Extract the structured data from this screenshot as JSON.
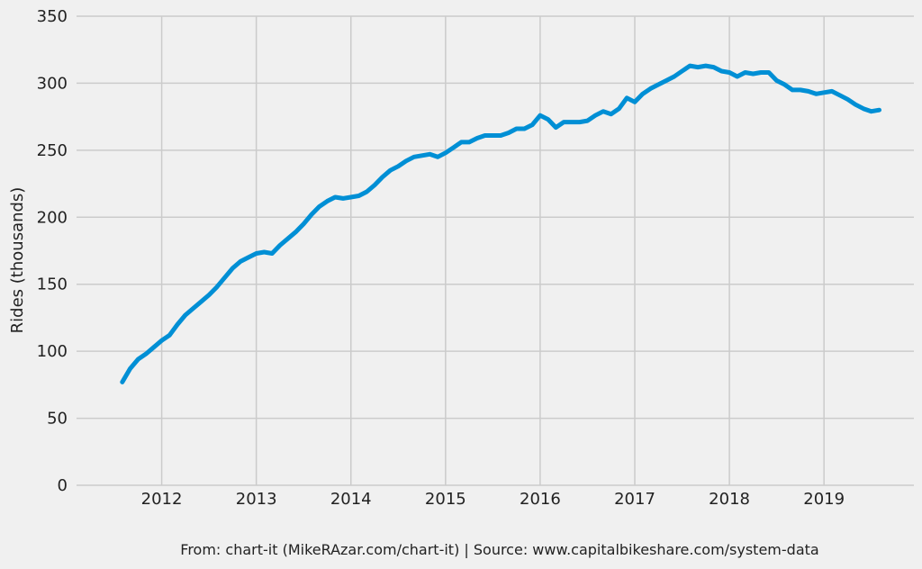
{
  "chart_data": {
    "type": "line",
    "title": "",
    "xlabel": "",
    "ylabel": "Rides (thousands)",
    "ylim": [
      0,
      350
    ],
    "xlim": [
      2011.1,
      2019.95
    ],
    "y_ticks": [
      0,
      50,
      100,
      150,
      200,
      250,
      300,
      350
    ],
    "x_ticks": [
      2012,
      2013,
      2014,
      2015,
      2016,
      2017,
      2018,
      2019
    ],
    "grid": true,
    "line_color": "#008fd5",
    "background_color": "#f0f0f0",
    "grid_color": "#cbcbcb",
    "series": [
      {
        "x": [
          "2011-08",
          "2011-09",
          "2011-10",
          "2011-11",
          "2011-12",
          "2012-01",
          "2012-02",
          "2012-03",
          "2012-04",
          "2012-05",
          "2012-06",
          "2012-07",
          "2012-08",
          "2012-09",
          "2012-10",
          "2012-11",
          "2012-12",
          "2013-01",
          "2013-02",
          "2013-03",
          "2013-04",
          "2013-05",
          "2013-06",
          "2013-07",
          "2013-08",
          "2013-09",
          "2013-10",
          "2013-11",
          "2013-12",
          "2014-01",
          "2014-02",
          "2014-03",
          "2014-04",
          "2014-05",
          "2014-06",
          "2014-07",
          "2014-08",
          "2014-09",
          "2014-10",
          "2014-11",
          "2014-12",
          "2015-01",
          "2015-02",
          "2015-03",
          "2015-04",
          "2015-05",
          "2015-06",
          "2015-07",
          "2015-08",
          "2015-09",
          "2015-10",
          "2015-11",
          "2015-12",
          "2016-01",
          "2016-02",
          "2016-03",
          "2016-04",
          "2016-05",
          "2016-06",
          "2016-07",
          "2016-08",
          "2016-09",
          "2016-10",
          "2016-11",
          "2016-12",
          "2017-01",
          "2017-02",
          "2017-03",
          "2017-04",
          "2017-05",
          "2017-06",
          "2017-07",
          "2017-08",
          "2017-09",
          "2017-10",
          "2017-11",
          "2017-12",
          "2018-01",
          "2018-02",
          "2018-03",
          "2018-04",
          "2018-05",
          "2018-06",
          "2018-07",
          "2018-08",
          "2018-09",
          "2018-10",
          "2018-11",
          "2018-12",
          "2019-01",
          "2019-02",
          "2019-03",
          "2019-04",
          "2019-05",
          "2019-06",
          "2019-07",
          "2019-08"
        ],
        "values": [
          77,
          87,
          94,
          98,
          103,
          108,
          112,
          120,
          127,
          132,
          137,
          142,
          148,
          155,
          162,
          167,
          170,
          173,
          174,
          173,
          179,
          184,
          189,
          195,
          202,
          208,
          212,
          215,
          214,
          215,
          216,
          219,
          224,
          230,
          235,
          238,
          242,
          245,
          246,
          247,
          245,
          248,
          252,
          256,
          256,
          259,
          261,
          261,
          261,
          263,
          266,
          266,
          269,
          276,
          273,
          267,
          271,
          271,
          271,
          272,
          276,
          279,
          277,
          281,
          289,
          286,
          292,
          296,
          299,
          302,
          305,
          309,
          313,
          312,
          313,
          312,
          309,
          308,
          305,
          308,
          307,
          308,
          308,
          302,
          299,
          295,
          295,
          294,
          292,
          293,
          294,
          291,
          288,
          284,
          281,
          279,
          280
        ]
      }
    ]
  },
  "footer": {
    "source": "From: chart-it (MikeRAzar.com/chart-it) | Source: www.capitalbikeshare.com/system-data"
  }
}
